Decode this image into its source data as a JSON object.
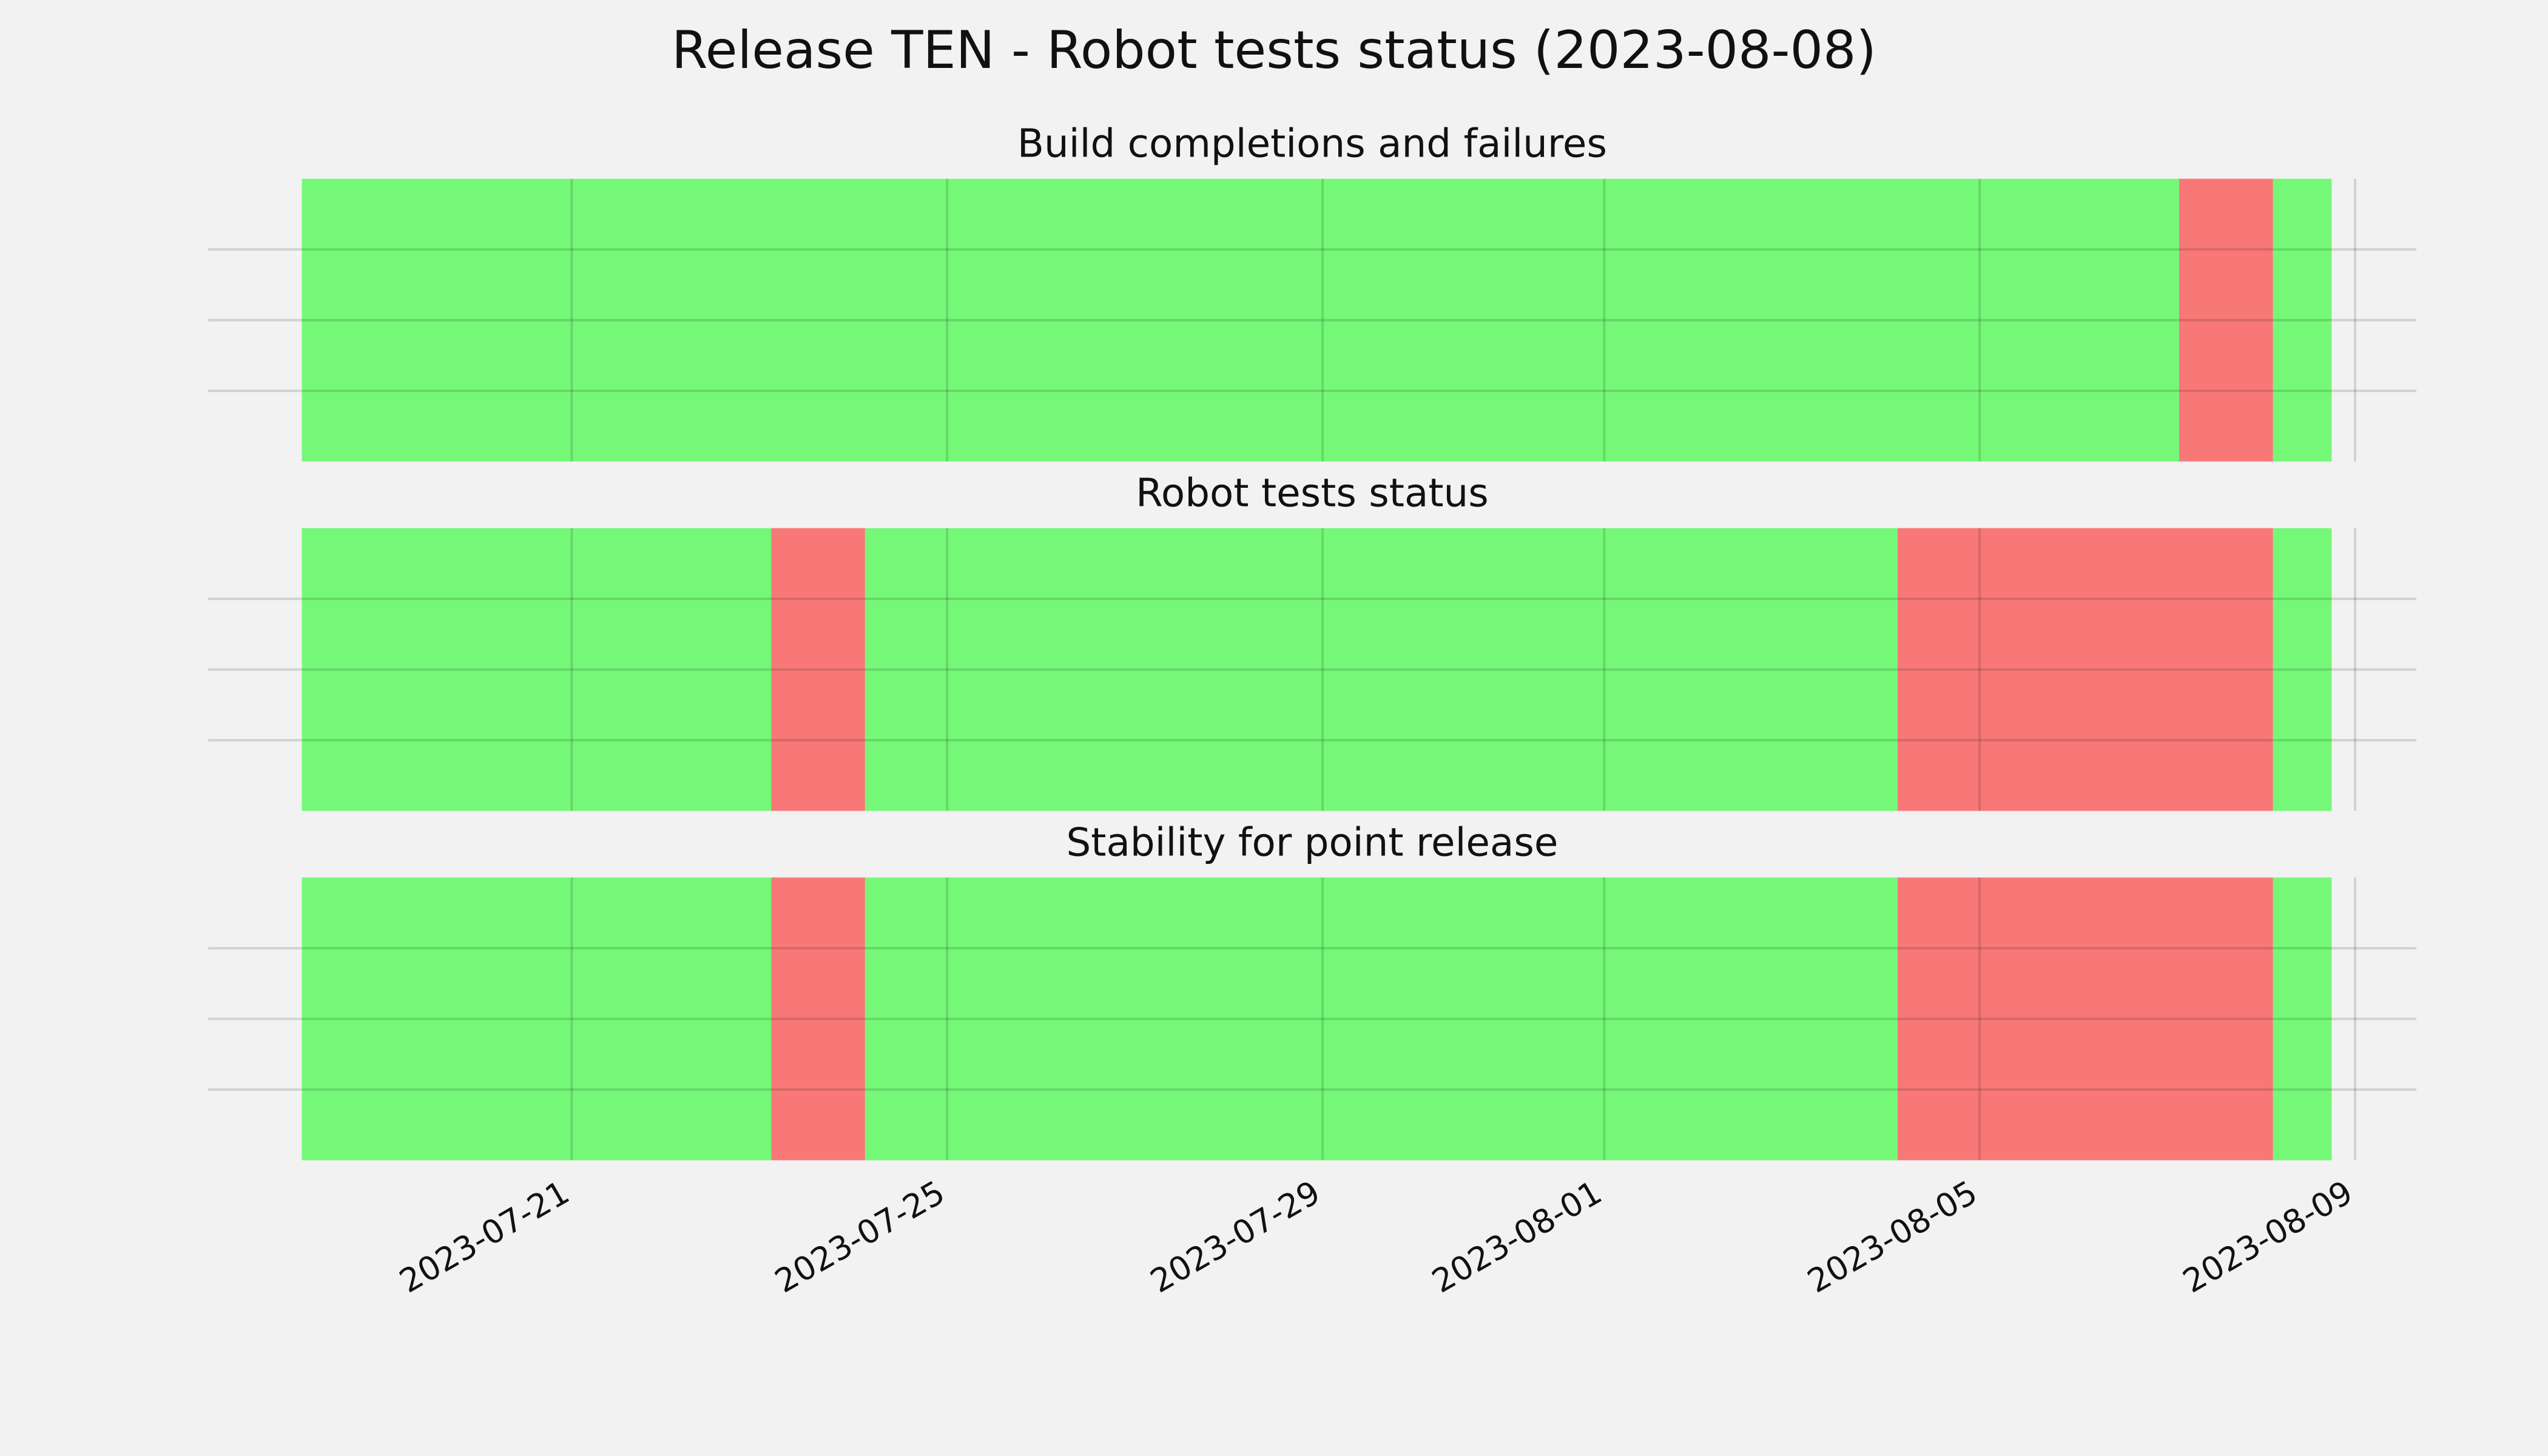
{
  "title": "Release TEN - Robot tests status (2023-08-08)",
  "chart_data": [
    {
      "type": "timeline",
      "title": "Build completions and failures",
      "x": [
        "2023-07-18T03:00",
        "2023-08-07T03:00",
        "2023-08-08T03:00",
        "2023-08-08T18:00"
      ],
      "colors": [
        "#75f878",
        "#f77877",
        "#75f878"
      ],
      "xlim": [
        "2023-07-17T03:00",
        "2023-08-09T15:40"
      ],
      "xticks": [
        "2023-07-21",
        "2023-07-25",
        "2023-07-29",
        "2023-08-01",
        "2023-08-05",
        "2023-08-09"
      ],
      "ylim": [
        0,
        1
      ],
      "yticks": [
        0.25,
        0.5,
        0.75
      ],
      "grid": true
    },
    {
      "type": "timeline",
      "title": "Robot tests status",
      "x": [
        "2023-07-18T03:00",
        "2023-07-23T03:00",
        "2023-07-24T03:00",
        "2023-08-04T03:00",
        "2023-08-08T03:00",
        "2023-08-08T18:00"
      ],
      "colors": [
        "#75f878",
        "#f77877",
        "#75f878",
        "#f77877",
        "#75f878"
      ],
      "xlim": [
        "2023-07-17T03:00",
        "2023-08-09T15:40"
      ],
      "xticks": [
        "2023-07-21",
        "2023-07-25",
        "2023-07-29",
        "2023-08-01",
        "2023-08-05",
        "2023-08-09"
      ],
      "ylim": [
        0,
        1
      ],
      "yticks": [
        0.25,
        0.5,
        0.75
      ],
      "grid": true
    },
    {
      "type": "timeline",
      "title": "Stability for point release",
      "x": [
        "2023-07-18T03:00",
        "2023-07-23T03:00",
        "2023-07-24T03:00",
        "2023-08-04T03:00",
        "2023-08-08T03:00",
        "2023-08-08T18:00"
      ],
      "colors": [
        "#75f878",
        "#f77877",
        "#75f878",
        "#f77877",
        "#75f878"
      ],
      "xlim": [
        "2023-07-17T03:00",
        "2023-08-09T15:40"
      ],
      "xticks": [
        "2023-07-21",
        "2023-07-25",
        "2023-07-29",
        "2023-08-01",
        "2023-08-05",
        "2023-08-09"
      ],
      "ylim": [
        0,
        1
      ],
      "yticks": [
        0.25,
        0.5,
        0.75
      ],
      "grid": true
    }
  ]
}
